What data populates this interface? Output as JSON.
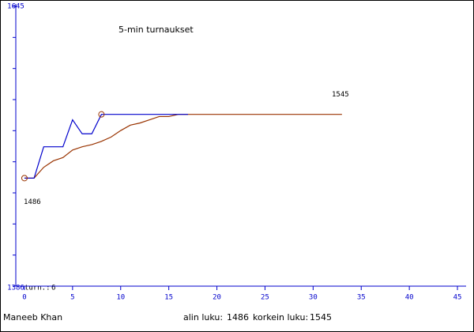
{
  "chart_data": {
    "type": "line",
    "title": "5-min turnaukset",
    "x": [
      0,
      1,
      2,
      3,
      4,
      5,
      6,
      7,
      8,
      9,
      10,
      11,
      12,
      13,
      14,
      15,
      16,
      17,
      18,
      19,
      20,
      21,
      22,
      23,
      24,
      25,
      26,
      27,
      28,
      29,
      30,
      31,
      32,
      33
    ],
    "series": [
      {
        "color": "#0000cc",
        "values": [
          1486,
          1486,
          1515,
          1515,
          1515,
          1540,
          1527,
          1527,
          1545,
          1545,
          1545,
          1545,
          1545,
          1545,
          1545,
          1545,
          1545,
          1545,
          null,
          null,
          null,
          null,
          null,
          null,
          null,
          null,
          null,
          null,
          null,
          null,
          null,
          null,
          null,
          null
        ]
      },
      {
        "color": "#993300",
        "values": [
          1486,
          1486,
          1496,
          1502,
          1505,
          1512,
          1515,
          1517,
          1520,
          1524,
          1530,
          1535,
          1537,
          1540,
          1543,
          1543,
          1545,
          1545,
          1545,
          1545,
          1545,
          1545,
          1545,
          1545,
          1545,
          1545,
          1545,
          1545,
          1545,
          1545,
          1545,
          1545,
          1545,
          1545
        ]
      }
    ],
    "markers": [
      {
        "x": 0,
        "value": 1486
      },
      {
        "x": 8,
        "value": 1545
      }
    ],
    "xlim": [
      -0.9,
      45.9
    ],
    "xticks": [
      0,
      5,
      10,
      15,
      20,
      25,
      30,
      35,
      40,
      45
    ],
    "ylim": [
      1386,
      1645
    ],
    "yticks": [
      1386,
      1645
    ],
    "axis_color": "#0000cc",
    "games_label": "turn.:",
    "games": 6,
    "player": "Maneeb Khan",
    "low_label": "alin luku:",
    "high_label": "korkein luku:"
  }
}
